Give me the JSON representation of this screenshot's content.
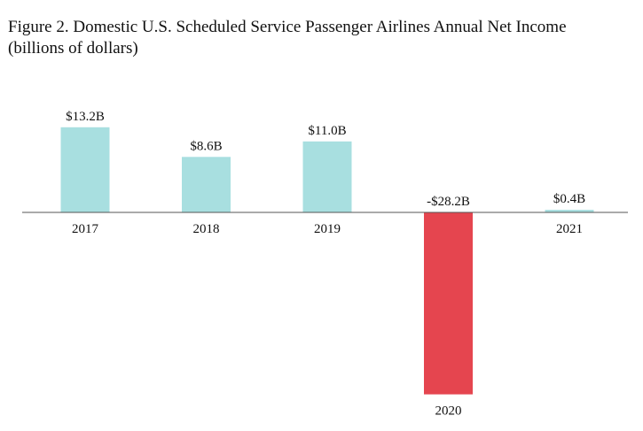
{
  "title": {
    "line1": "Figure 2. Domestic U.S. Scheduled Service Passenger Airlines Annual Net Income",
    "line2": "(billions of dollars)"
  },
  "colors": {
    "positive": "#a8dfe0",
    "negative": "#e5454f",
    "axis": "#555555"
  },
  "chart_data": {
    "type": "bar",
    "title": "Figure 2. Domestic U.S. Scheduled Service Passenger Airlines Annual Net Income (billions of dollars)",
    "categories": [
      "2017",
      "2018",
      "2019",
      "2020",
      "2021"
    ],
    "values": [
      13.2,
      8.6,
      11.0,
      -28.2,
      0.4
    ],
    "data_labels": [
      "$13.2B",
      "$8.6B",
      "$11.0B",
      "-$28.2B",
      "$0.4B"
    ],
    "xlabel": "",
    "ylabel": "",
    "ylim": [
      -28.2,
      13.2
    ],
    "grid": false,
    "legend": "none"
  }
}
